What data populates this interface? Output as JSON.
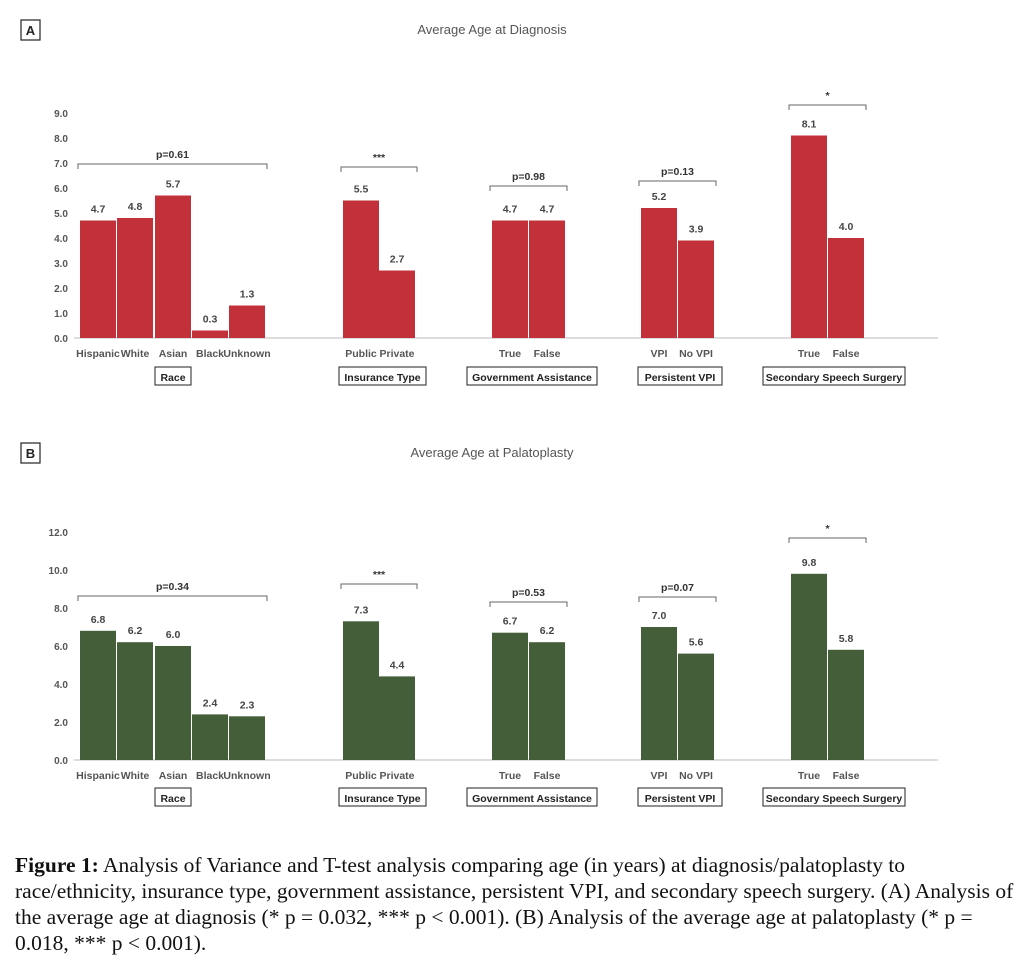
{
  "chart_data": [
    {
      "type": "bar",
      "panel_label": "A",
      "title": "Average Age at Diagnosis",
      "ylim": [
        0,
        9
      ],
      "yticks": [
        "0.0",
        "1.0",
        "2.0",
        "3.0",
        "4.0",
        "5.0",
        "6.0",
        "7.0",
        "8.0",
        "9.0"
      ],
      "color": "#c2303a",
      "groups": [
        {
          "name": "Race",
          "significance": "p=0.61",
          "categories": [
            "Hispanic",
            "White",
            "Asian",
            "Black",
            "Unknown"
          ],
          "values": [
            4.7,
            4.8,
            5.7,
            0.3,
            1.3
          ]
        },
        {
          "name": "Insurance Type",
          "significance": "***",
          "categories": [
            "Public",
            "Private"
          ],
          "values": [
            5.5,
            2.7
          ]
        },
        {
          "name": "Government Assistance",
          "significance": "p=0.98",
          "categories": [
            "True",
            "False"
          ],
          "values": [
            4.7,
            4.7
          ]
        },
        {
          "name": "Persistent VPI",
          "significance": "p=0.13",
          "categories": [
            "VPI",
            "No VPI"
          ],
          "values": [
            5.2,
            3.9
          ]
        },
        {
          "name": "Secondary Speech Surgery",
          "significance": "*",
          "categories": [
            "True",
            "False"
          ],
          "values": [
            8.1,
            4.0
          ]
        }
      ]
    },
    {
      "type": "bar",
      "panel_label": "B",
      "title": "Average Age at Palatoplasty",
      "ylim": [
        0,
        12
      ],
      "yticks": [
        "0.0",
        "2.0",
        "4.0",
        "6.0",
        "8.0",
        "10.0",
        "12.0"
      ],
      "color": "#445e3a",
      "groups": [
        {
          "name": "Race",
          "significance": "p=0.34",
          "categories": [
            "Hispanic",
            "White",
            "Asian",
            "Black",
            "Unknown"
          ],
          "values": [
            6.8,
            6.2,
            6.0,
            2.4,
            2.3
          ]
        },
        {
          "name": "Insurance Type",
          "significance": "***",
          "categories": [
            "Public",
            "Private"
          ],
          "values": [
            7.3,
            4.4
          ]
        },
        {
          "name": "Government Assistance",
          "significance": "p=0.53",
          "categories": [
            "True",
            "False"
          ],
          "values": [
            6.7,
            6.2
          ]
        },
        {
          "name": "Persistent VPI",
          "significance": "p=0.07",
          "categories": [
            "VPI",
            "No VPI"
          ],
          "values": [
            7.0,
            5.6
          ]
        },
        {
          "name": "Secondary Speech Surgery",
          "significance": "*",
          "categories": [
            "True",
            "False"
          ],
          "values": [
            9.8,
            5.8
          ]
        }
      ]
    }
  ],
  "caption": {
    "label": "Figure 1:",
    "text": " Analysis of Variance and T-test analysis comparing age (in years) at diagnosis/palatoplasty to race/ethnicity, insurance type, government assistance, persistent VPI, and secondary speech surgery. (A) Analysis of the average age at diagnosis (* p = 0.032, *** p < 0.001). (B) Analysis of the average age at palatoplasty (* p = 0.018, *** p < 0.001)."
  }
}
